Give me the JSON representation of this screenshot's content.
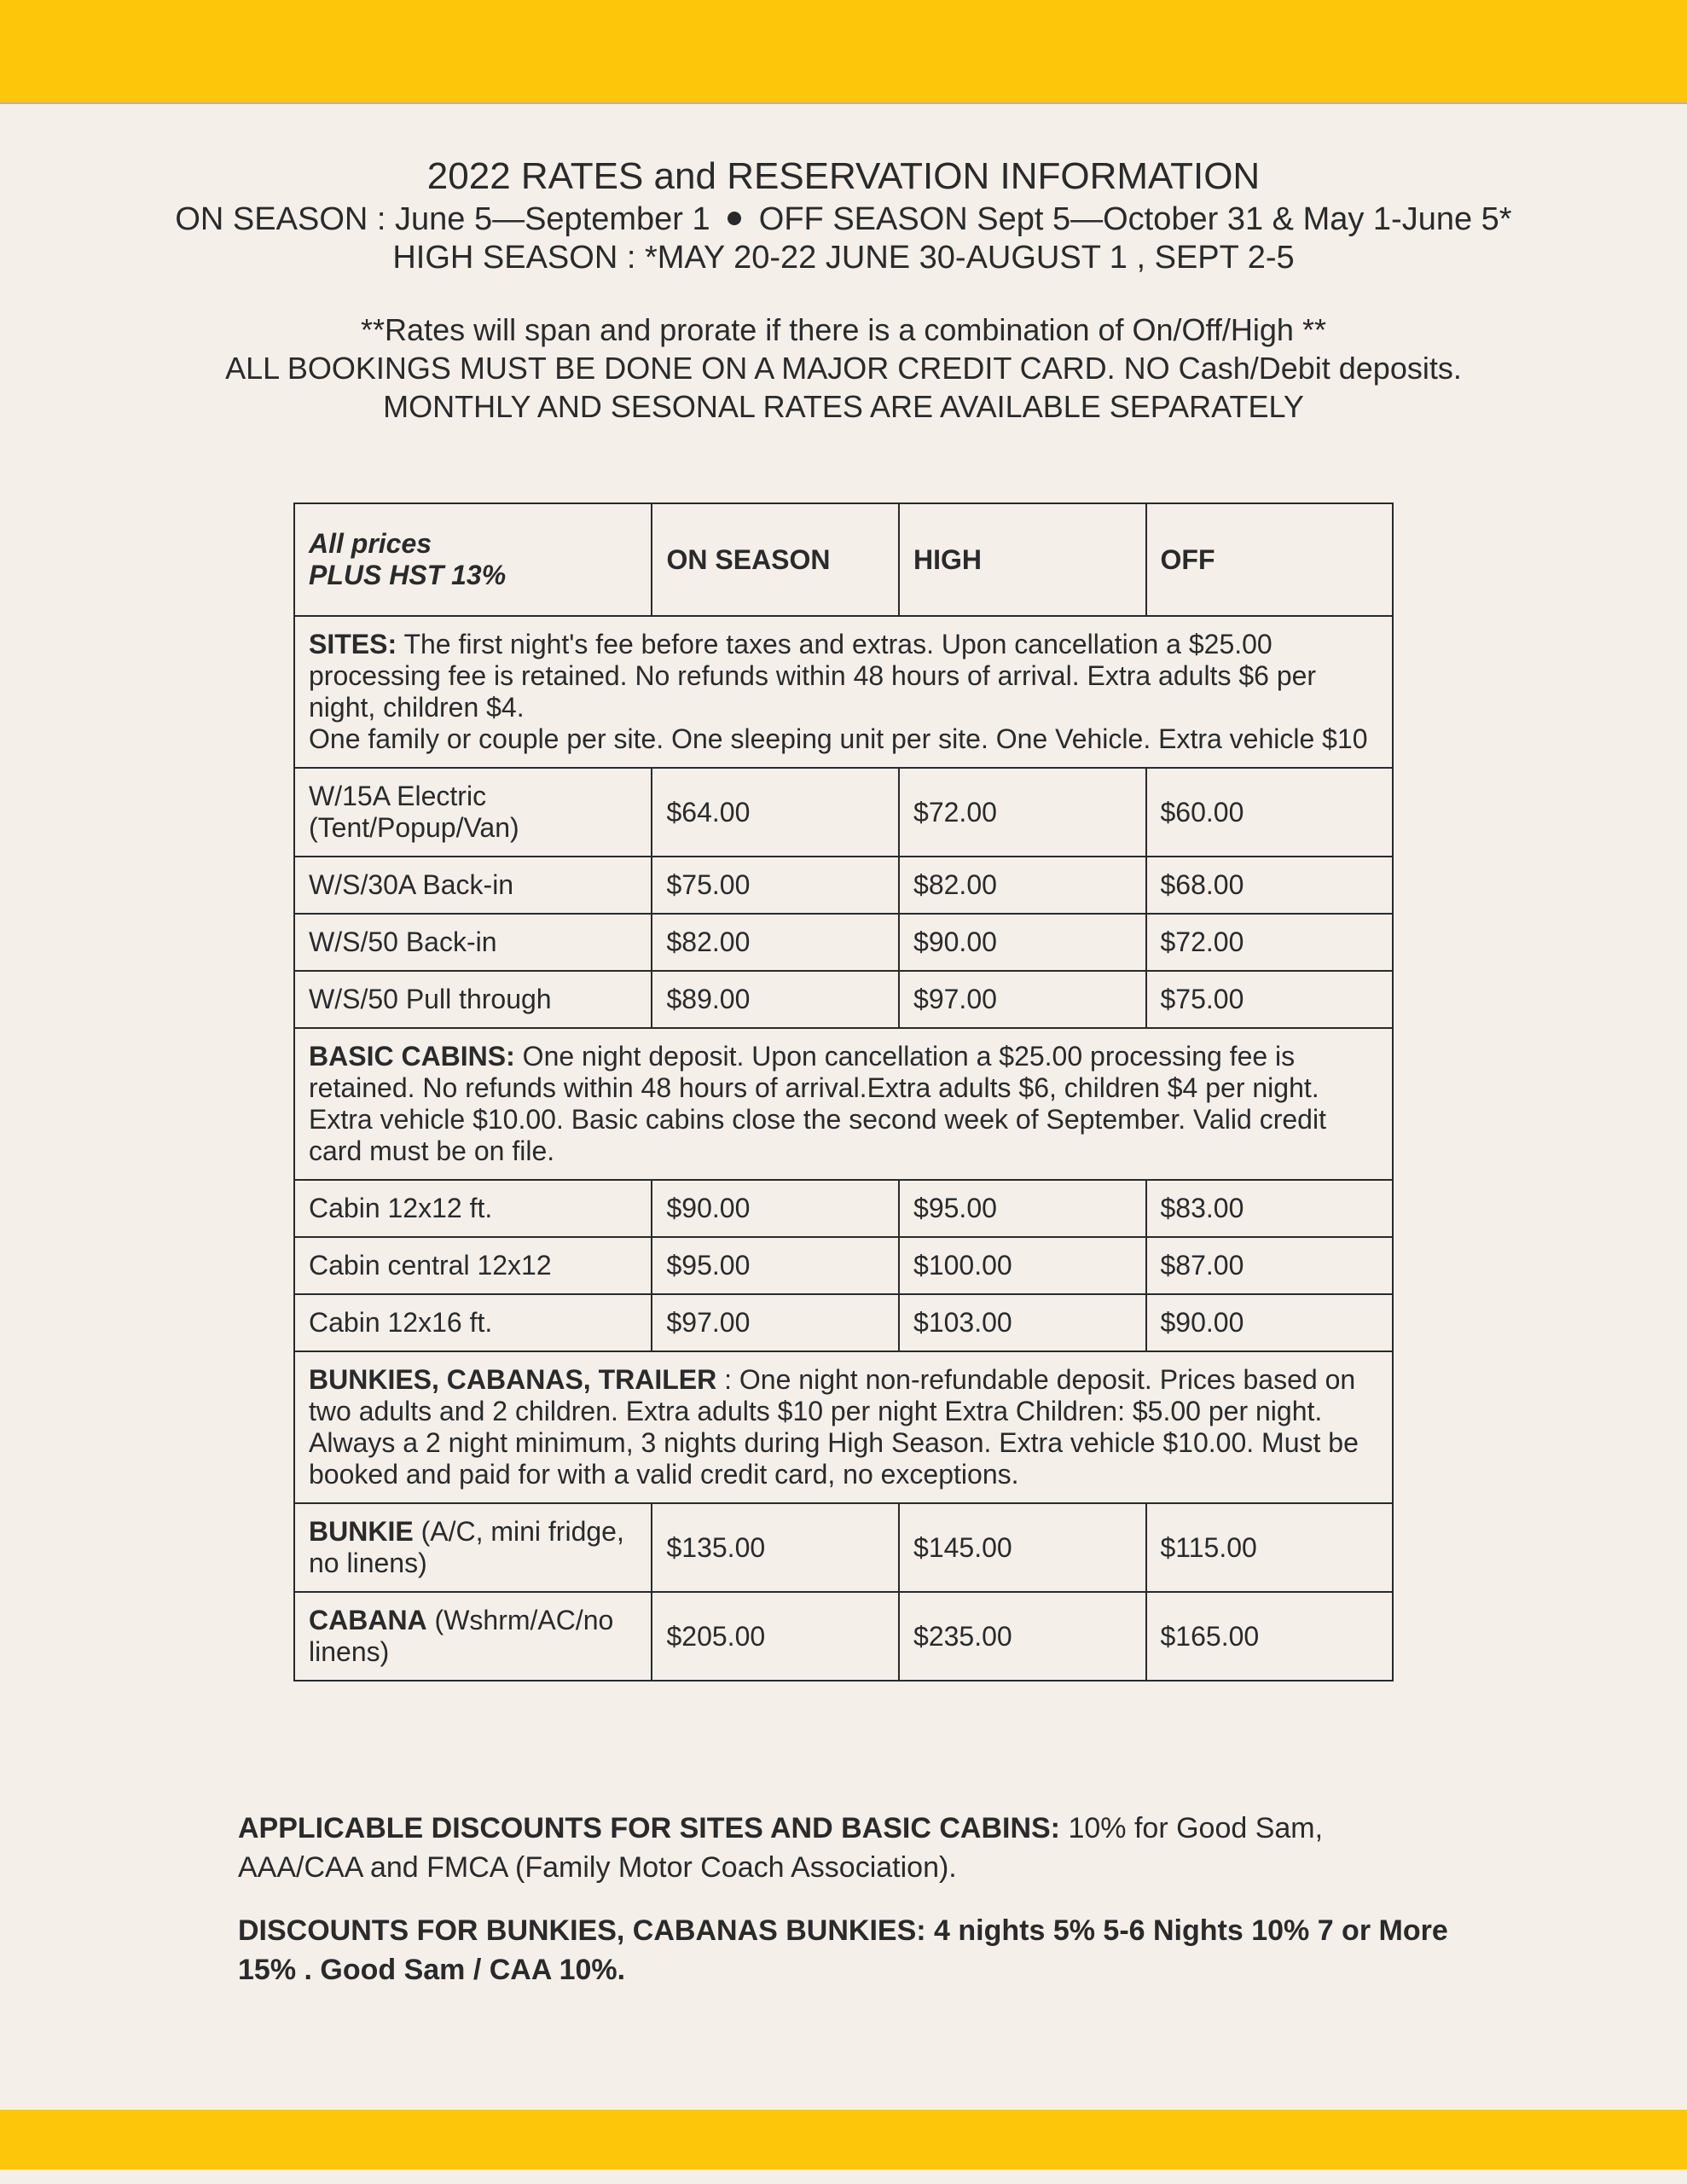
{
  "header": {
    "title": "2022 RATES and RESERVATION INFORMATION",
    "season_on_left": "ON SEASON : June 5—September 1",
    "season_off_right": "OFF SEASON Sept 5—October 31 & May 1-June 5*",
    "season_high": "HIGH SEASON :  *MAY 20-22  JUNE 30-AUGUST 1  , SEPT 2-5",
    "note1": "**Rates will span and prorate if there is a combination of On/Off/High **",
    "note2": "ALL BOOKINGS MUST BE DONE ON A MAJOR CREDIT CARD.  NO Cash/Debit deposits.",
    "note3": "MONTHLY AND SESONAL RATES ARE AVAILABLE SEPARATELY"
  },
  "table": {
    "header": {
      "prices_label_l1": "All prices",
      "prices_label_l2": "PLUS HST 13%",
      "col_on": "ON SEASON",
      "col_high": "HIGH",
      "col_off": "OFF"
    },
    "sections": {
      "sites": {
        "label": "SITES:",
        "text": " The first night's fee before taxes and extras.  Upon cancellation a $25.00 processing fee is retained.  No refunds within 48 hours of arrival.  Extra adults $6 per night, children $4.",
        "text2": "One family or couple per site.  One sleeping unit per site. One Vehicle.  Extra vehicle $10",
        "rows": [
          {
            "name": " W/15A Electric (Tent/Popup/Van)",
            "on": "$64.00",
            "high": "$72.00",
            "off": "$60.00"
          },
          {
            "name": " W/S/30A Back-in",
            "on": "$75.00",
            "high": "$82.00",
            "off": "$68.00"
          },
          {
            "name": "W/S/50 Back-in",
            "on": "$82.00",
            "high": "$90.00",
            "off": "$72.00"
          },
          {
            "name": "W/S/50 Pull through",
            "on": "$89.00",
            "high": "$97.00",
            "off": "$75.00"
          }
        ]
      },
      "cabins": {
        "label": "BASIC CABINS:",
        "text": " One night deposit. Upon cancellation a $25.00 processing fee is retained.  No refunds within 48 hours of arrival.Extra adults $6, children $4 per night. Extra vehicle $10.00. Basic cabins close the second week of September.  Valid credit card must be on file.",
        "rows": [
          {
            "name": " Cabin 12x12 ft.",
            "on": "$90.00",
            "high": "$95.00",
            "off": "$83.00"
          },
          {
            "name": "Cabin central 12x12",
            "on": "$95.00",
            "high": "$100.00",
            "off": "$87.00"
          },
          {
            "name": "Cabin 12x16 ft.",
            "on": "$97.00",
            "high": "$103.00",
            "off": "$90.00"
          }
        ]
      },
      "bunkies": {
        "label": "BUNKIES, CABANAS, TRAILER",
        "text": " : One night non-refundable deposit.  Prices based on two adults and 2 children.  Extra adults $10 per night Extra Children: $5.00 per night. Always a 2 night minimum, 3 nights during High Season.  Extra vehicle $10.00.  Must be booked and paid for with a valid credit card, no exceptions.",
        "rows": [
          {
            "name_bold": "BUNKIE",
            "name_rest": " (A/C, mini fridge, no linens)",
            "on": "$135.00",
            "high": "$145.00",
            "off": "$115.00"
          },
          {
            "name_bold": "CABANA",
            "name_rest": " (Wshrm/AC/no linens)",
            "on": "$205.00",
            "high": "$235.00",
            "off": "$165.00"
          }
        ]
      }
    }
  },
  "discounts": {
    "p1_bold": "APPLICABLE DISCOUNTS FOR SITES AND BASIC CABINS:",
    "p1_rest": " 10% for Good Sam, AAA/CAA and FMCA (Family Motor Coach Association).",
    "p2": "DISCOUNTS FOR BUNKIES, CABANAS BUNKIES: 4 nights 5% 5-6 Nights 10%  7 or More 15%  . Good Sam / CAA 10%."
  },
  "colors": {
    "bar": "#fdc60b",
    "background": "#f4efe9",
    "text": "#2a2a2a",
    "border": "#2a2a2a"
  }
}
